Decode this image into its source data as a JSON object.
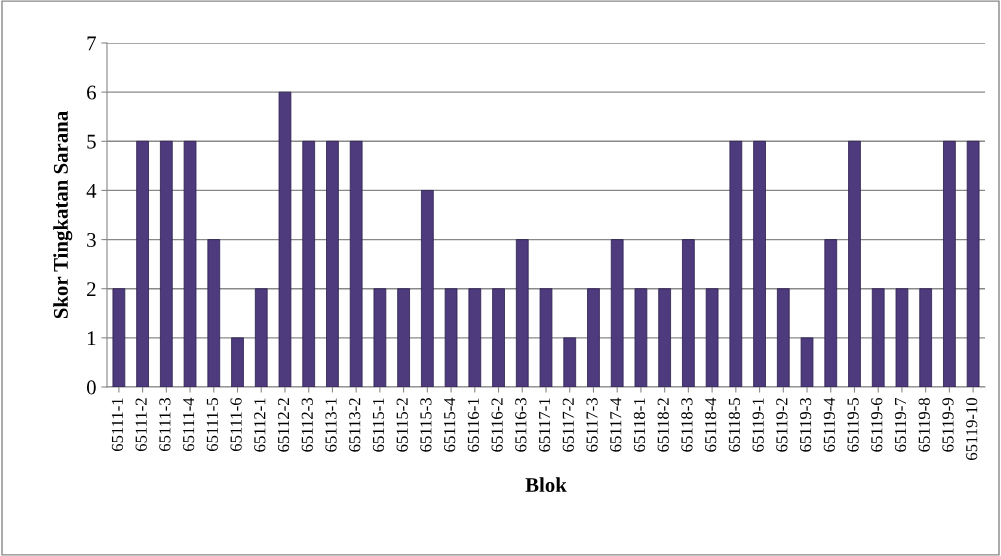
{
  "chart_data": {
    "type": "bar",
    "xlabel": "Blok",
    "ylabel": "Skor Tingkatan Sarana",
    "categories": [
      "65111-1",
      "65111-2",
      "65111-3",
      "65111-4",
      "65111-5",
      "65111-6",
      "65112-1",
      "65112-2",
      "65112-3",
      "65113-1",
      "65113-2",
      "65115-1",
      "65115-2",
      "65115-3",
      "65115-4",
      "65116-1",
      "65116-2",
      "65116-3",
      "65117-1",
      "65117-2",
      "65117-3",
      "65117-4",
      "65118-1",
      "65118-2",
      "65118-3",
      "65118-4",
      "65118-5",
      "65119-1",
      "65119-2",
      "65119-3",
      "65119-4",
      "65119-5",
      "65119-6",
      "65119-7",
      "65119-8",
      "65119-9",
      "65119-10"
    ],
    "values": [
      2,
      5,
      5,
      5,
      3,
      1,
      2,
      6,
      5,
      5,
      5,
      2,
      2,
      4,
      2,
      2,
      2,
      3,
      2,
      1,
      2,
      3,
      2,
      2,
      3,
      2,
      5,
      5,
      2,
      1,
      3,
      5,
      2,
      2,
      2,
      5,
      5
    ],
    "color": "#4e3b7e",
    "ylim": [
      0,
      7
    ],
    "yticks": [
      0,
      1,
      2,
      3,
      4,
      5,
      6,
      7
    ],
    "grid": "y",
    "legend": false
  }
}
